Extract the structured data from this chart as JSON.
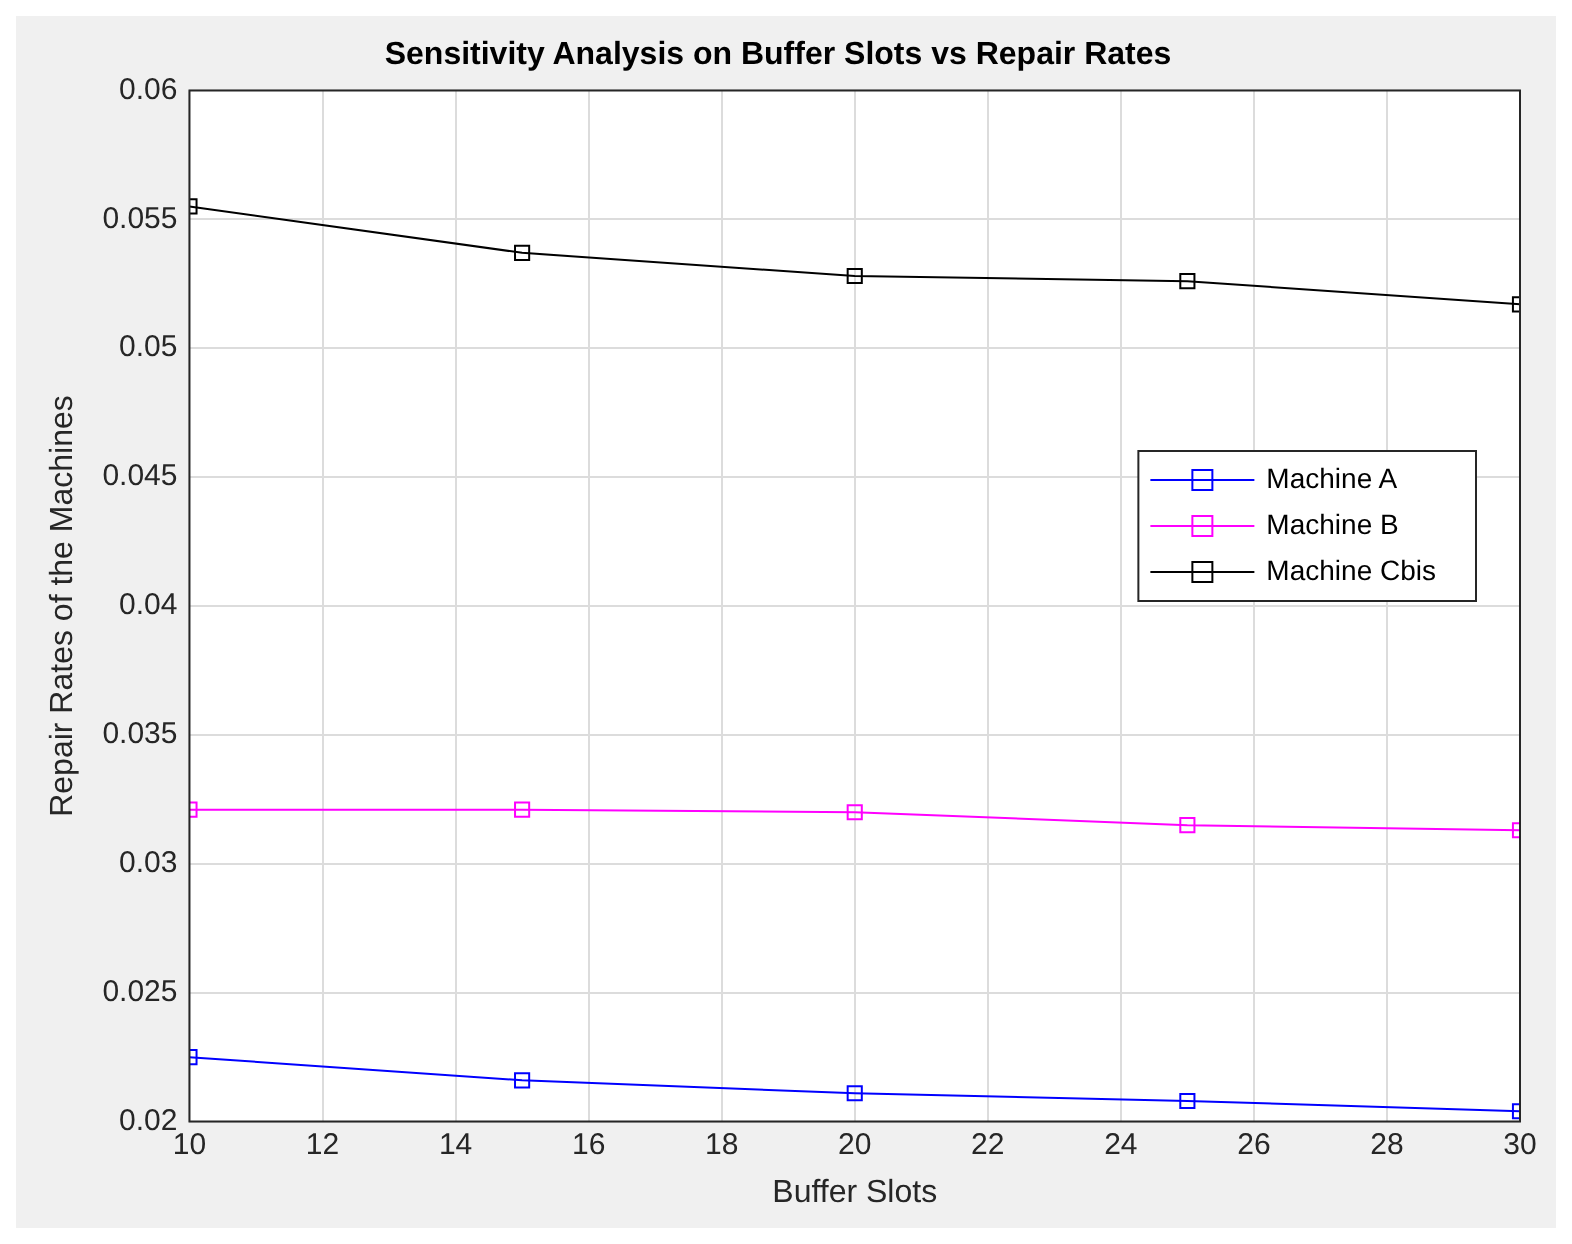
{
  "chart_data": {
    "type": "line",
    "title": "Sensitivity Analysis on Buffer Slots vs Repair Rates",
    "xlabel": "Buffer Slots",
    "ylabel": "Repair Rates of the Machines",
    "x": [
      10,
      15,
      20,
      25,
      30
    ],
    "series": [
      {
        "name": "Machine A",
        "color": "#0000ff",
        "values": [
          0.0225,
          0.0216,
          0.0211,
          0.0208,
          0.0204
        ]
      },
      {
        "name": "Machine B",
        "color": "#ff00ff",
        "values": [
          0.0321,
          0.0321,
          0.032,
          0.0315,
          0.0313
        ]
      },
      {
        "name": "Machine Cbis",
        "color": "#000000",
        "values": [
          0.0555,
          0.0537,
          0.0528,
          0.0526,
          0.0517
        ]
      }
    ],
    "xlim": [
      10,
      30
    ],
    "xticks": [
      10,
      12,
      14,
      16,
      18,
      20,
      22,
      24,
      26,
      28,
      30
    ],
    "ylim": [
      0.02,
      0.06
    ],
    "yticks": [
      0.02,
      0.025,
      0.03,
      0.035,
      0.04,
      0.045,
      0.05,
      0.055,
      0.06
    ],
    "grid": true,
    "legend": "right",
    "marker": "square",
    "line_style": "solid"
  }
}
